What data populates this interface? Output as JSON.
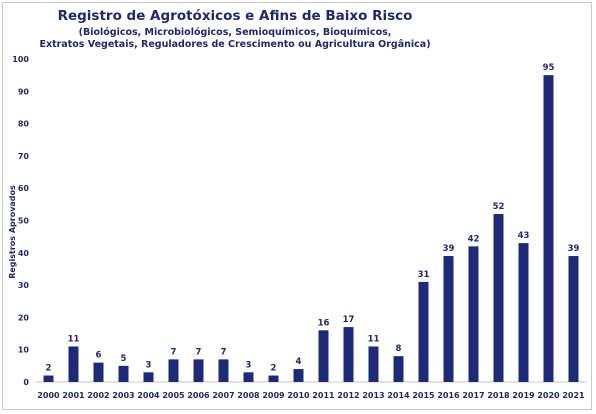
{
  "chart_data": {
    "type": "bar",
    "title": "Registro de Agrotóxicos e Afins de Baixo Risco",
    "subtitle": [
      "(Biológicos, Microbiológicos, Semioquímicos, Bioquímicos,",
      "Extratos Vegetais, Reguladores de Crescimento ou Agricultura Orgânica)"
    ],
    "xlabel": "",
    "ylabel": "Registros Aprovados",
    "ylim": [
      0,
      100
    ],
    "yticks": [
      0,
      10,
      20,
      30,
      40,
      50,
      60,
      70,
      80,
      90,
      100
    ],
    "grid": false,
    "categories": [
      "2000",
      "2001",
      "2002",
      "2003",
      "2004",
      "2005",
      "2006",
      "2007",
      "2008",
      "2009",
      "2010",
      "2011",
      "2012",
      "2013",
      "2014",
      "2015",
      "2016",
      "2017",
      "2018",
      "2019",
      "2020",
      "2021"
    ],
    "values": [
      2,
      11,
      6,
      5,
      3,
      7,
      7,
      7,
      3,
      2,
      4,
      16,
      17,
      11,
      8,
      31,
      39,
      42,
      52,
      43,
      95,
      39
    ],
    "bar_color": "#1c2a78",
    "text_color": "#1f2a6b"
  }
}
